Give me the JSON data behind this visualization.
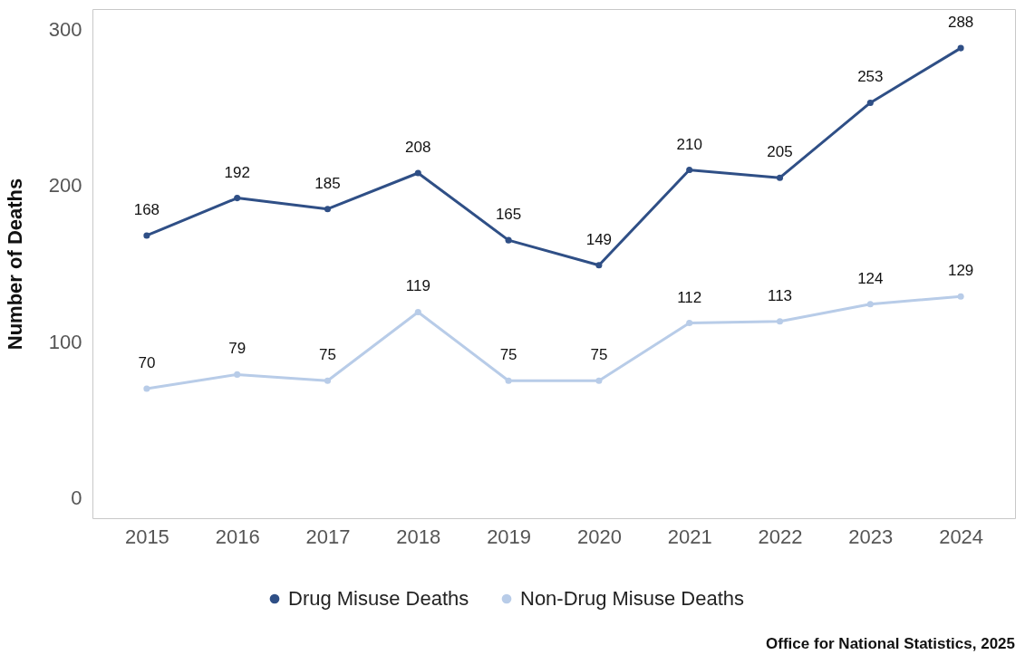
{
  "chart_data": {
    "type": "line",
    "ylabel": "Number of Deaths",
    "categories": [
      "2015",
      "2016",
      "2017",
      "2018",
      "2019",
      "2020",
      "2021",
      "2022",
      "2023",
      "2024"
    ],
    "series": [
      {
        "name": "Drug Misuse Deaths",
        "color": "#2f4f86",
        "values": [
          168,
          192,
          185,
          208,
          165,
          149,
          210,
          205,
          253,
          288
        ]
      },
      {
        "name": "Non-Drug Misuse Deaths",
        "color": "#b8cce8",
        "values": [
          70,
          79,
          75,
          119,
          75,
          75,
          112,
          113,
          124,
          129
        ]
      }
    ],
    "ylim": [
      -13,
      313
    ],
    "yticks": [
      0,
      100,
      200,
      300
    ],
    "grid": false,
    "legend": "bottom",
    "marker": "circle",
    "line_style": "solid",
    "data_labels": true,
    "annotations": [
      "Office for National Statistics, 2025"
    ]
  }
}
